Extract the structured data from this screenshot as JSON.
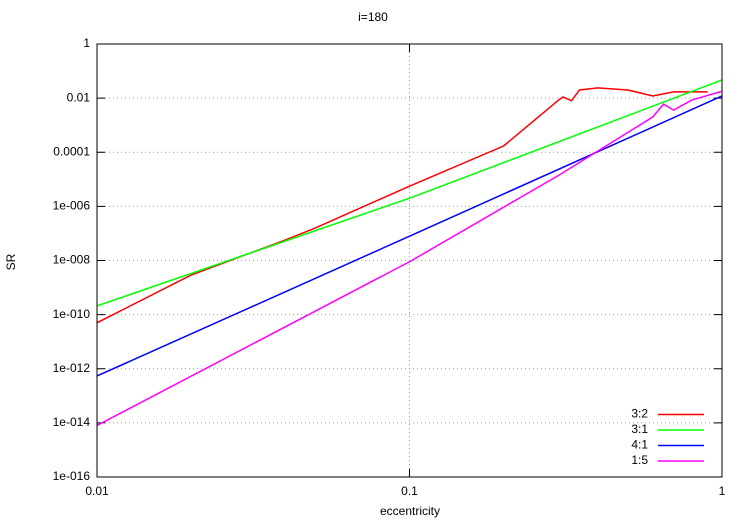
{
  "chart_data": {
    "type": "line",
    "title": "i=180",
    "xlabel": "eccentricity",
    "ylabel": "SR",
    "xscale": "log",
    "yscale": "log",
    "grid": true,
    "legend": "bottom-right",
    "xlim": [
      0.01,
      1
    ],
    "xticks": [
      0.01,
      0.1,
      1
    ],
    "ylim": [
      1e-16,
      1
    ],
    "yticks": [
      {
        "value": 1e-16,
        "label": "1e-016"
      },
      {
        "value": 1e-14,
        "label": "1e-014"
      },
      {
        "value": 1e-12,
        "label": "1e-012"
      },
      {
        "value": 1e-10,
        "label": "1e-010"
      },
      {
        "value": 1e-08,
        "label": "1e-008"
      },
      {
        "value": 1e-06,
        "label": "1e-006"
      },
      0.0001,
      0.01,
      1
    ],
    "series": [
      {
        "name": "3:2",
        "color": "#ff0000",
        "x": [
          0.01,
          0.02,
          0.04,
          0.05,
          0.1,
          0.2,
          0.3,
          0.31,
          0.33,
          0.35,
          0.4,
          0.5,
          0.6,
          0.7,
          0.9
        ],
        "values": [
          5e-11,
          2.9e-09,
          5.7e-08,
          1.6e-07,
          5.6e-06,
          0.00017,
          0.0085,
          0.011,
          0.008,
          0.02,
          0.024,
          0.02,
          0.012,
          0.017,
          0.017
        ]
      },
      {
        "name": "3:1",
        "color": "#00ff00",
        "x": [
          0.01,
          0.1,
          1
        ],
        "values": [
          2.1e-10,
          2e-06,
          0.047
        ]
      },
      {
        "name": "4:1",
        "color": "#0000ff",
        "x": [
          0.01,
          0.1,
          1
        ],
        "values": [
          5.4e-13,
          7.9e-08,
          0.012
        ]
      },
      {
        "name": "1:5",
        "color": "#ff00ff",
        "x": [
          0.01,
          0.1,
          0.3,
          0.6,
          0.65,
          0.7,
          0.8,
          1
        ],
        "values": [
          8e-15,
          9e-09,
          1.4e-05,
          0.002,
          0.006,
          0.0036,
          0.0085,
          0.018
        ]
      }
    ]
  }
}
